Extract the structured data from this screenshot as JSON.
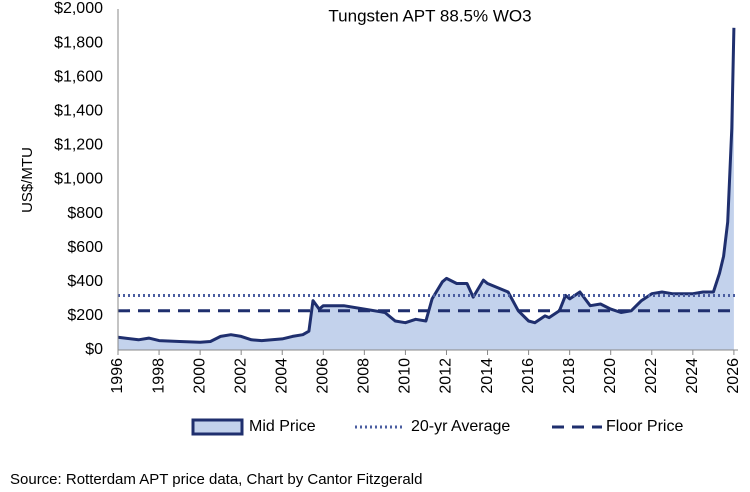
{
  "chart_data": {
    "type": "area",
    "title": "Tungsten APT 88.5% WO3",
    "y_label": "US$/MTU",
    "source": "Source: Rotterdam APT price data, Chart by Cantor Fitzgerald",
    "xlim": [
      1996,
      2026.2
    ],
    "xticks": [
      1996,
      1998,
      2000,
      2002,
      2004,
      2006,
      2008,
      2010,
      2012,
      2014,
      2016,
      2018,
      2020,
      2022,
      2024,
      2026
    ],
    "ylim": [
      0,
      2000
    ],
    "yticks": [
      {
        "value": 0,
        "label": "$0"
      },
      {
        "value": 200,
        "label": "$200"
      },
      {
        "value": 400,
        "label": "$400"
      },
      {
        "value": 600,
        "label": "$600"
      },
      {
        "value": 800,
        "label": "$800"
      },
      {
        "value": 1000,
        "label": "$1,000"
      },
      {
        "value": 1200,
        "label": "$1,200"
      },
      {
        "value": 1400,
        "label": "$1,400"
      },
      {
        "value": 1600,
        "label": "$1,600"
      },
      {
        "value": 1800,
        "label": "$1,800"
      },
      {
        "value": 2000,
        "label": "$2,000"
      }
    ],
    "series": [
      {
        "name": "Mid Price",
        "color": "#1f2f6e",
        "fill": "#c3d2ec",
        "x": [
          1996,
          1997,
          1997.5,
          1998,
          1999,
          2000,
          2000.5,
          2001,
          2001.5,
          2002,
          2002.5,
          2003,
          2004,
          2004.5,
          2005,
          2005.3,
          2005.5,
          2005.8,
          2006,
          2007,
          2008,
          2009,
          2009.5,
          2010,
          2010.5,
          2011,
          2011.3,
          2011.8,
          2012,
          2012.5,
          2013,
          2013.3,
          2013.8,
          2014,
          2015,
          2015.5,
          2016,
          2016.3,
          2016.8,
          2017,
          2017.5,
          2017.8,
          2018,
          2018.5,
          2019,
          2019.5,
          2020,
          2020.5,
          2021,
          2021.5,
          2022,
          2022.5,
          2023,
          2024,
          2024.5,
          2025,
          2025.3,
          2025.5,
          2025.7,
          2025.9,
          2026
        ],
        "values": [
          75,
          60,
          70,
          55,
          50,
          45,
          50,
          80,
          90,
          80,
          60,
          55,
          65,
          80,
          90,
          110,
          290,
          240,
          260,
          260,
          240,
          220,
          170,
          160,
          180,
          170,
          300,
          400,
          420,
          390,
          390,
          310,
          410,
          390,
          340,
          230,
          170,
          160,
          200,
          190,
          230,
          320,
          300,
          340,
          260,
          270,
          240,
          220,
          230,
          290,
          330,
          340,
          330,
          330,
          340,
          340,
          450,
          550,
          750,
          1300,
          1890
        ]
      }
    ],
    "reference_lines": [
      {
        "name": "20-yr Average",
        "value": 320,
        "color": "#4a5da0",
        "style": "dotted"
      },
      {
        "name": "Floor Price",
        "value": 230,
        "color": "#1f2f6e",
        "style": "dashed"
      }
    ]
  }
}
